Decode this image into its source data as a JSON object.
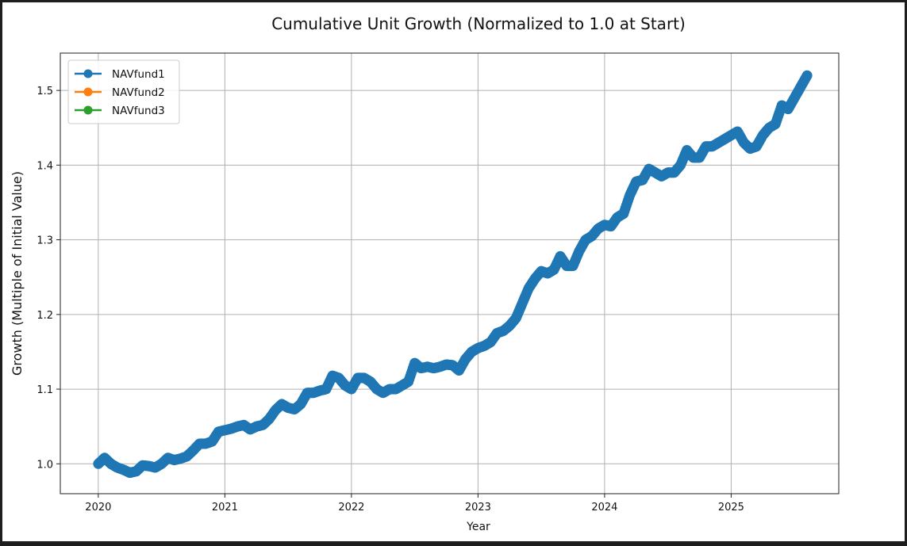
{
  "chart_data": {
    "type": "line",
    "title": "Cumulative Unit Growth (Normalized to 1.0 at Start)",
    "xlabel": "Year",
    "ylabel": "Growth (Multiple of Initial Value)",
    "xlim": [
      2019.7,
      2025.85
    ],
    "ylim": [
      0.96,
      1.55
    ],
    "x_ticks": [
      2020,
      2021,
      2022,
      2023,
      2024,
      2025
    ],
    "x_tick_labels": [
      "2020",
      "2021",
      "2022",
      "2023",
      "2024",
      "2025"
    ],
    "y_ticks": [
      1.0,
      1.1,
      1.2,
      1.3,
      1.4,
      1.5
    ],
    "y_tick_labels": [
      "1.0",
      "1.1",
      "1.2",
      "1.3",
      "1.4",
      "1.5"
    ],
    "grid": true,
    "legend_position": "top-left",
    "series": [
      {
        "name": "NAVfund1",
        "color": "#1f77b4",
        "marker": "circle",
        "x": [
          2020.0,
          2020.05,
          2020.1,
          2020.15,
          2020.2,
          2020.25,
          2020.3,
          2020.35,
          2020.4,
          2020.45,
          2020.5,
          2020.55,
          2020.6,
          2020.65,
          2020.7,
          2020.75,
          2020.8,
          2020.85,
          2020.9,
          2020.95,
          2021.0,
          2021.05,
          2021.1,
          2021.15,
          2021.2,
          2021.25,
          2021.3,
          2021.35,
          2021.4,
          2021.45,
          2021.5,
          2021.55,
          2021.6,
          2021.65,
          2021.7,
          2021.75,
          2021.8,
          2021.85,
          2021.9,
          2021.95,
          2022.0,
          2022.05,
          2022.1,
          2022.15,
          2022.2,
          2022.25,
          2022.3,
          2022.35,
          2022.4,
          2022.45,
          2022.5,
          2022.55,
          2022.6,
          2022.65,
          2022.7,
          2022.75,
          2022.8,
          2022.85,
          2022.9,
          2022.95,
          2023.0,
          2023.05,
          2023.1,
          2023.15,
          2023.2,
          2023.25,
          2023.3,
          2023.35,
          2023.4,
          2023.45,
          2023.5,
          2023.55,
          2023.6,
          2023.65,
          2023.7,
          2023.75,
          2023.8,
          2023.85,
          2023.9,
          2023.95,
          2024.0,
          2024.05,
          2024.1,
          2024.15,
          2024.2,
          2024.25,
          2024.3,
          2024.35,
          2024.4,
          2024.45,
          2024.5,
          2024.55,
          2024.6,
          2024.65,
          2024.7,
          2024.75,
          2024.8,
          2024.85,
          2024.9,
          2024.95,
          2025.0,
          2025.05,
          2025.1,
          2025.15,
          2025.2,
          2025.25,
          2025.3,
          2025.35,
          2025.4,
          2025.45,
          2025.5,
          2025.55,
          2025.6
        ],
        "y": [
          1.0,
          1.008,
          1.0,
          0.995,
          0.992,
          0.988,
          0.99,
          0.998,
          0.997,
          0.995,
          1.0,
          1.008,
          1.005,
          1.007,
          1.01,
          1.018,
          1.027,
          1.027,
          1.03,
          1.043,
          1.045,
          1.047,
          1.05,
          1.052,
          1.046,
          1.05,
          1.052,
          1.06,
          1.072,
          1.08,
          1.075,
          1.073,
          1.08,
          1.095,
          1.095,
          1.098,
          1.1,
          1.118,
          1.115,
          1.105,
          1.1,
          1.115,
          1.115,
          1.11,
          1.1,
          1.095,
          1.1,
          1.1,
          1.105,
          1.11,
          1.135,
          1.128,
          1.13,
          1.128,
          1.13,
          1.133,
          1.132,
          1.125,
          1.14,
          1.15,
          1.155,
          1.158,
          1.163,
          1.175,
          1.178,
          1.185,
          1.195,
          1.215,
          1.235,
          1.248,
          1.258,
          1.255,
          1.26,
          1.278,
          1.265,
          1.265,
          1.285,
          1.3,
          1.305,
          1.315,
          1.32,
          1.318,
          1.33,
          1.335,
          1.36,
          1.378,
          1.38,
          1.395,
          1.39,
          1.385,
          1.39,
          1.39,
          1.4,
          1.42,
          1.41,
          1.41,
          1.425,
          1.425,
          1.43,
          1.435,
          1.44,
          1.445,
          1.43,
          1.422,
          1.425,
          1.44,
          1.45,
          1.455,
          1.48,
          1.475,
          1.49,
          1.505,
          1.52
        ]
      },
      {
        "name": "NAVfund2",
        "color": "#ff7f0e",
        "marker": "circle",
        "x": [],
        "y": []
      },
      {
        "name": "NAVfund3",
        "color": "#2ca02c",
        "marker": "circle",
        "x": [],
        "y": []
      }
    ]
  }
}
